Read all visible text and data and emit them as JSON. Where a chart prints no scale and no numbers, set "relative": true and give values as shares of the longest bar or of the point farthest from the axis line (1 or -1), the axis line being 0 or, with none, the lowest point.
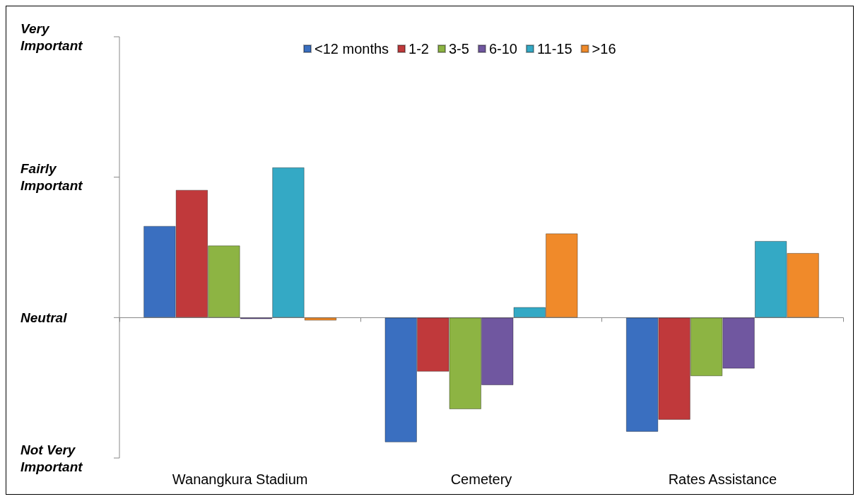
{
  "chart_data": {
    "type": "bar",
    "relative": true,
    "categories": [
      "Wanangkura Stadium",
      "Cemetery",
      "Rates Assistance"
    ],
    "series": [
      {
        "name": "<12 months",
        "color": "#3a6fc0",
        "values": [
          0.61,
          -0.83,
          -0.76
        ]
      },
      {
        "name": "1-2",
        "color": "#c0393b",
        "values": [
          0.85,
          -0.36,
          -0.68
        ]
      },
      {
        "name": "3-5",
        "color": "#8db443",
        "values": [
          0.48,
          -0.61,
          -0.39
        ]
      },
      {
        "name": "6-10",
        "color": "#7057a0",
        "values": [
          -0.01,
          -0.45,
          -0.34
        ]
      },
      {
        "name": "11-15",
        "color": "#34a9c5",
        "values": [
          1,
          0.07,
          0.51
        ]
      },
      {
        "name": ">16",
        "color": "#f08a2a",
        "values": [
          -0.02,
          0.56,
          0.43
        ]
      }
    ],
    "annotations": [
      "Very Important",
      "Fairly Important",
      "Neutral",
      "Not Very Important"
    ],
    "grid": false,
    "legend": "top"
  }
}
